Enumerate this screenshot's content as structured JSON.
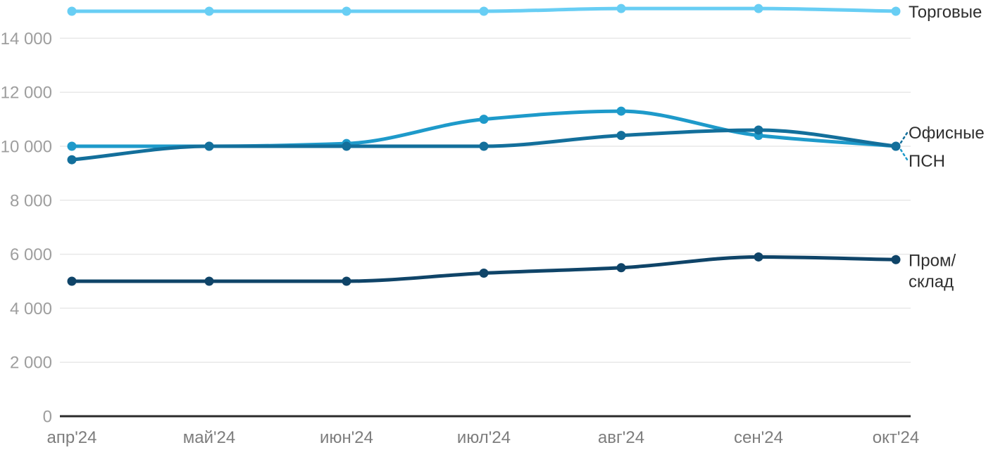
{
  "chart_data": {
    "type": "line",
    "title": "",
    "xlabel": "",
    "ylabel": "",
    "x_categories": [
      "апр'24",
      "май'24",
      "июн'24",
      "июл'24",
      "авг'24",
      "сен'24",
      "окт'24"
    ],
    "y_ticks": [
      {
        "value": 0,
        "label": "0"
      },
      {
        "value": 2000,
        "label": "2 000"
      },
      {
        "value": 4000,
        "label": "4 000"
      },
      {
        "value": 6000,
        "label": "6 000"
      },
      {
        "value": 8000,
        "label": "8 000"
      },
      {
        "value": 10000,
        "label": "10 000"
      },
      {
        "value": 12000,
        "label": "12 000"
      },
      {
        "value": 14000,
        "label": "14 000"
      }
    ],
    "ylim": [
      0,
      15500
    ],
    "grid": true,
    "legend_position": "labels-at-line-ends-right",
    "series": [
      {
        "name": "Торговые",
        "color": "#68cef4",
        "values": [
          15000,
          15000,
          15000,
          15000,
          15100,
          15100,
          15000
        ],
        "label_lines": [
          "Торговые"
        ],
        "label_mode": "center"
      },
      {
        "name": "ПСН",
        "color": "#1e9aca",
        "values": [
          10000,
          10000,
          10100,
          11000,
          11300,
          10400,
          10000
        ],
        "label_lines": [
          "ПСН"
        ],
        "label_mode": "leader-down"
      },
      {
        "name": "Офисные",
        "color": "#136f9b",
        "values": [
          9500,
          10000,
          10000,
          10000,
          10400,
          10600,
          10000
        ],
        "label_lines": [
          "Офисные"
        ],
        "label_mode": "leader-up"
      },
      {
        "name": "Пром/склад",
        "color": "#0f4468",
        "values": [
          5000,
          5000,
          5000,
          5300,
          5500,
          5900,
          5800
        ],
        "label_lines": [
          "Пром/",
          "склад"
        ],
        "label_mode": "stacked"
      }
    ]
  },
  "colors": {
    "background": "#ffffff",
    "grid": "#e8e8e8",
    "axis": "#2b2b2b",
    "y_tick": "#9e9e9e",
    "x_tick": "#7d7d7d",
    "series_label": "#2f2f2f"
  }
}
